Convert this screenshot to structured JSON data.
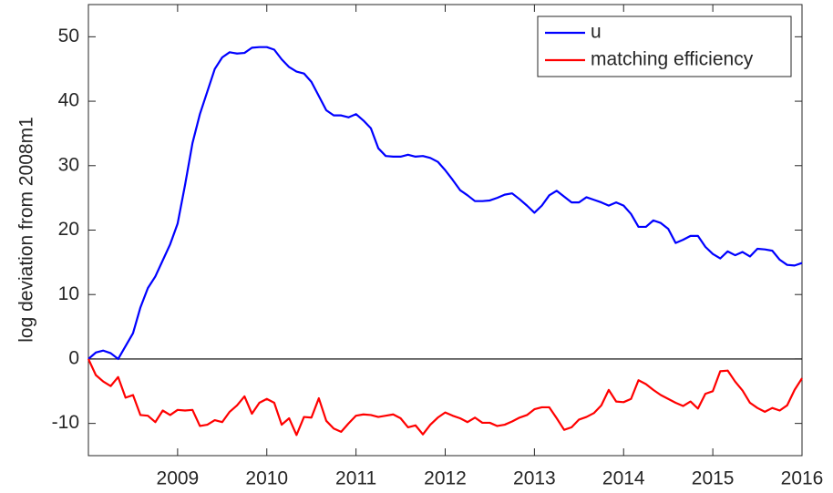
{
  "chart_data": {
    "type": "line",
    "y_label": "log deviation from 2008m1",
    "x": [
      2008,
      2008.0833,
      2008.1667,
      2008.25,
      2008.3333,
      2008.4167,
      2008.5,
      2008.5833,
      2008.6667,
      2008.75,
      2008.8333,
      2008.9167,
      2009,
      2009.0833,
      2009.1667,
      2009.25,
      2009.3333,
      2009.4167,
      2009.5,
      2009.5833,
      2009.6667,
      2009.75,
      2009.8333,
      2009.9167,
      2010,
      2010.0833,
      2010.1667,
      2010.25,
      2010.3333,
      2010.4167,
      2010.5,
      2010.5833,
      2010.6667,
      2010.75,
      2010.8333,
      2010.9167,
      2011,
      2011.0833,
      2011.1667,
      2011.25,
      2011.3333,
      2011.4167,
      2011.5,
      2011.5833,
      2011.6667,
      2011.75,
      2011.8333,
      2011.9167,
      2012,
      2012.0833,
      2012.1667,
      2012.25,
      2012.3333,
      2012.4167,
      2012.5,
      2012.5833,
      2012.6667,
      2012.75,
      2012.8333,
      2012.9167,
      2013,
      2013.0833,
      2013.1667,
      2013.25,
      2013.3333,
      2013.4167,
      2013.5,
      2013.5833,
      2013.6667,
      2013.75,
      2013.8333,
      2013.9167,
      2014,
      2014.0833,
      2014.1667,
      2014.25,
      2014.3333,
      2014.4167,
      2014.5,
      2014.5833,
      2014.6667,
      2014.75,
      2014.8333,
      2014.9167,
      2015,
      2015.0833,
      2015.1667,
      2015.25,
      2015.3333,
      2015.4167,
      2015.5,
      2015.5833,
      2015.6667,
      2015.75,
      2015.8333,
      2015.9167,
      2016
    ],
    "series": [
      {
        "name": "u",
        "color": "#0000ff",
        "values": [
          0,
          1,
          1.3,
          0.9,
          0,
          2,
          4,
          8,
          11,
          12.8,
          15.3,
          17.8,
          21,
          27,
          33.5,
          38,
          41.5,
          45,
          46.8,
          47.6,
          47.4,
          47.5,
          48.3,
          48.4,
          48.4,
          48,
          46.5,
          45.3,
          44.6,
          44.3,
          43,
          40.8,
          38.6,
          37.8,
          37.8,
          37.5,
          38,
          37,
          35.8,
          32.7,
          31.5,
          31.4,
          31.4,
          31.7,
          31.4,
          31.5,
          31.2,
          30.6,
          29.3,
          27.8,
          26.2,
          25.4,
          24.5,
          24.5,
          24.6,
          25,
          25.5,
          25.7,
          24.8,
          23.8,
          22.7,
          23.8,
          25.4,
          26.1,
          25.2,
          24.3,
          24.3,
          25.1,
          24.7,
          24.3,
          23.8,
          24.3,
          23.8,
          22.5,
          20.5,
          20.5,
          21.5,
          21.1,
          20.2,
          18,
          18.5,
          19.1,
          19.1,
          17.4,
          16.3,
          15.6,
          16.7,
          16.1,
          16.6,
          15.9,
          17.1,
          17,
          16.8,
          15.4,
          14.6,
          14.5,
          14.9
        ]
      },
      {
        "name": "matching efficiency",
        "color": "#ff0000",
        "values": [
          0,
          -2.5,
          -3.5,
          -4.2,
          -2.8,
          -6,
          -5.6,
          -8.7,
          -8.8,
          -9.8,
          -8,
          -8.7,
          -7.9,
          -8,
          -7.9,
          -10.4,
          -10.2,
          -9.5,
          -9.8,
          -8.2,
          -7.2,
          -5.8,
          -8.5,
          -6.8,
          -6.2,
          -6.8,
          -10.2,
          -9.2,
          -11.8,
          -9,
          -9.1,
          -6.1,
          -9.6,
          -10.8,
          -11.3,
          -10,
          -8.8,
          -8.6,
          -8.7,
          -9,
          -8.8,
          -8.6,
          -9.2,
          -10.6,
          -10.3,
          -11.7,
          -10.2,
          -9.1,
          -8.3,
          -8.8,
          -9.2,
          -9.8,
          -9.1,
          -9.9,
          -9.9,
          -10.4,
          -10.2,
          -9.7,
          -9.1,
          -8.7,
          -7.8,
          -7.5,
          -7.5,
          -9.2,
          -11,
          -10.6,
          -9.4,
          -9,
          -8.4,
          -7.2,
          -4.8,
          -6.6,
          -6.7,
          -6.2,
          -3.3,
          -3.9,
          -4.8,
          -5.6,
          -6.2,
          -6.8,
          -7.3,
          -6.6,
          -7.7,
          -5.4,
          -5,
          -1.9,
          -1.8,
          -3.5,
          -4.9,
          -6.8,
          -7.6,
          -8.2,
          -7.6,
          -8,
          -7.2,
          -4.8,
          -3
        ]
      }
    ],
    "reference_line": 0,
    "xlim": [
      2008,
      2016
    ],
    "xticks": [
      2009,
      2010,
      2011,
      2012,
      2013,
      2014,
      2015,
      2016
    ],
    "ylim": [
      -15,
      55
    ],
    "yticks": [
      -10,
      0,
      10,
      20,
      30,
      40,
      50
    ],
    "legend": "upper right",
    "grid": false
  }
}
